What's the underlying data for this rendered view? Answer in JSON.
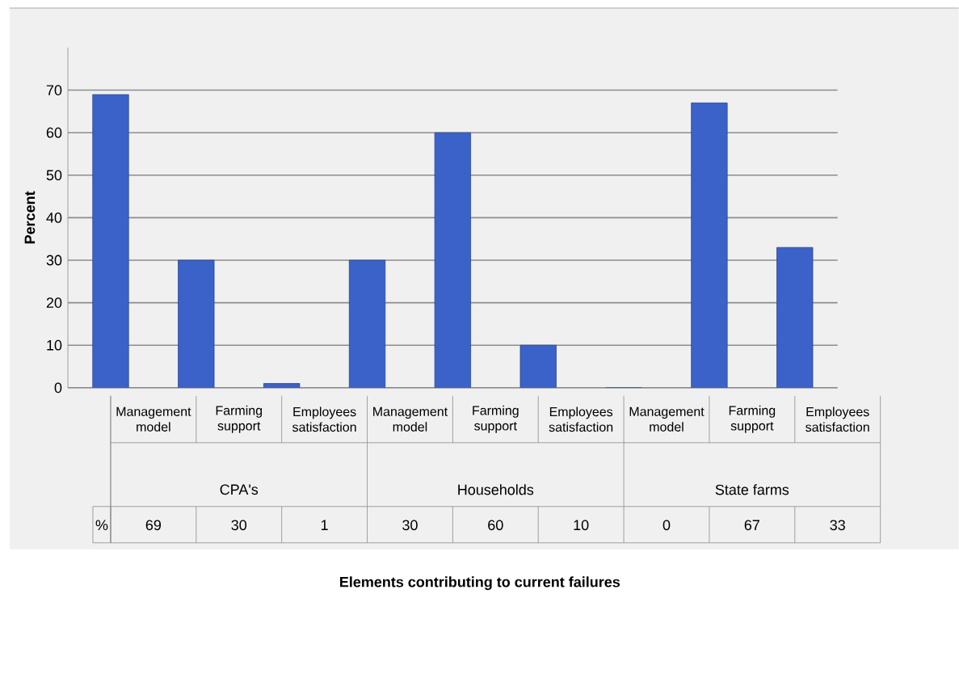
{
  "chart_data": {
    "type": "bar",
    "categories": [
      "Management model",
      "Farming support",
      "Employees satisfaction",
      "Management model",
      "Farming support",
      "Employees satisfaction",
      "Management model",
      "Farming support",
      "Employees satisfaction"
    ],
    "values": [
      69,
      30,
      1,
      30,
      60,
      10,
      0,
      67,
      33
    ],
    "color": "#3a62c9",
    "ylim": [
      0,
      80
    ],
    "yticks": [
      0,
      10,
      20,
      30,
      40,
      50,
      60,
      70
    ],
    "grid": "y",
    "data_labels": true,
    "ylabel": "Percent",
    "annotations": [
      "CPA's",
      "Households",
      "State farms",
      "%",
      "Elements contributing to current failures"
    ]
  }
}
